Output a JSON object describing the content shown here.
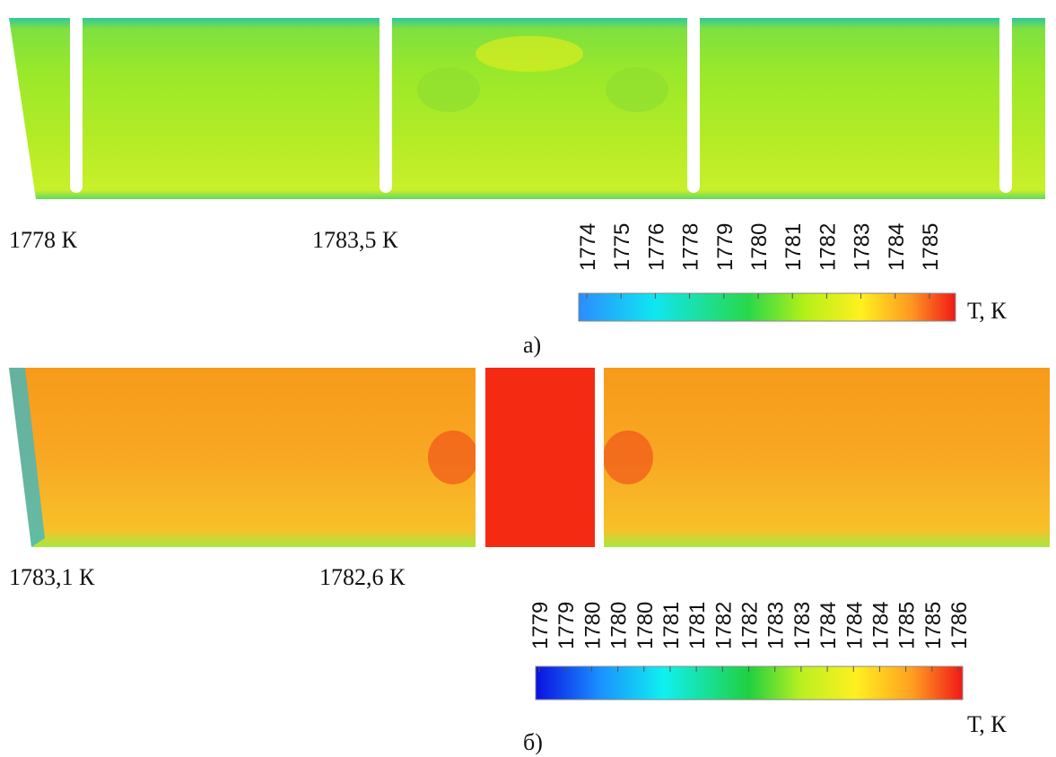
{
  "panel_a": {
    "labels": [
      "1778 К",
      "1783,5 К"
    ],
    "colorbar": {
      "ticks": [
        "1774",
        "1775",
        "1776",
        "1778",
        "1779",
        "1780",
        "1781",
        "1782",
        "1783",
        "1784",
        "1785"
      ],
      "unit": "Т,  К"
    },
    "caption": "а)"
  },
  "panel_b": {
    "labels": [
      "1783,1 К",
      "1782,6  К"
    ],
    "colorbar": {
      "ticks": [
        "1779",
        "1779",
        "1780",
        "1780",
        "1780",
        "1781",
        "1781",
        "1782",
        "1782",
        "1783",
        "1783",
        "1784",
        "1784",
        "1784",
        "1785",
        "1785",
        "1786"
      ],
      "unit": "Т,  К"
    },
    "caption": "б)"
  }
}
